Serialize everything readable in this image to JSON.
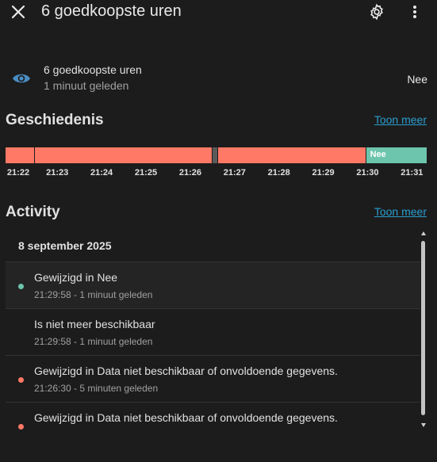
{
  "header": {
    "title": "6 goedkoopste uren",
    "close_icon": "close-icon",
    "settings_icon": "gear-icon",
    "menu_icon": "more-vertical-icon"
  },
  "entity": {
    "icon": "eye-icon",
    "name": "6 goedkoopste uren",
    "last_changed": "1 minuut geleden",
    "state": "Nee"
  },
  "history": {
    "title": "Geschiedenis",
    "show_more": "Toon meer",
    "segments": [
      {
        "state": "unavailable",
        "from": "21:21:50",
        "to": "21:22:30",
        "color": "#ff7966",
        "label": ""
      },
      {
        "state": "unavailable",
        "from": "21:22:30",
        "to": "21:26:30",
        "color": "#ff7966",
        "label": ""
      },
      {
        "state": "unknown",
        "from": "21:26:30",
        "to": "21:26:38",
        "color": "#5a5a5a",
        "label": ""
      },
      {
        "state": "unavailable",
        "from": "21:26:38",
        "to": "21:29:58",
        "color": "#ff7966",
        "label": ""
      },
      {
        "state": "Nee",
        "from": "21:29:58",
        "to": "21:31:20",
        "color": "#6cc5ac",
        "label": "Nee"
      }
    ],
    "ticks": [
      "21:22",
      "21:23",
      "21:24",
      "21:25",
      "21:26",
      "21:27",
      "21:28",
      "21:29",
      "21:30",
      "21:31"
    ]
  },
  "activity": {
    "title": "Activity",
    "show_more": "Toon meer",
    "date": "8 september 2025",
    "entries": [
      {
        "message": "Gewijzigd in Nee",
        "time": "21:29:58 - 1 minuut geleden",
        "dot_color": "#6cc5ac",
        "highlight": true
      },
      {
        "message": "Is niet meer beschikbaar",
        "time": "21:29:58 - 1 minuut geleden",
        "dot_color": "",
        "highlight": false
      },
      {
        "message": "Gewijzigd in Data niet beschikbaar of onvoldoende gegevens.",
        "time": "21:26:30 - 5 minuten geleden",
        "dot_color": "#ff7966",
        "highlight": false
      },
      {
        "message": "Gewijzigd in Data niet beschikbaar of onvoldoende gegevens.",
        "time": "",
        "dot_color": "#ff7966",
        "highlight": false
      }
    ]
  },
  "colors": {
    "background": "#1c1c1c",
    "accent_link": "#2a9ed0",
    "state_off": "#6cc5ac",
    "state_unavailable": "#ff7966",
    "eye_icon": "#4a8dc3"
  }
}
